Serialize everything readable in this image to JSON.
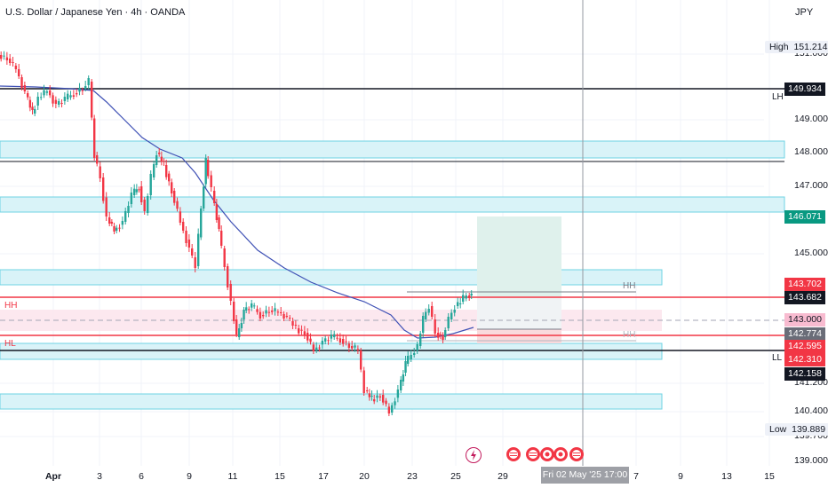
{
  "header": {
    "title": "U.S. Dollar / Japanese Yen · 4h · OANDA",
    "currency": "JPY"
  },
  "colors": {
    "bull": "#26a69a",
    "bear": "#f23645",
    "zone": "#d9f3f8",
    "zone_border": "#4dd0e1",
    "ma": "#3f51b5"
  },
  "price_axis": {
    "labels": [
      "151.000",
      "149.000",
      "148.000",
      "147.000",
      "145.000",
      "141.200",
      "140.400",
      "139.700",
      "139.000"
    ],
    "high": {
      "label": "High",
      "value": "151.214"
    },
    "low": {
      "label": "Low",
      "value": "139.889"
    }
  },
  "price_tags": [
    {
      "value": "149.934",
      "bg": "#131722",
      "fg": "#ffffff"
    },
    {
      "value": "146.071",
      "bg": "#089981",
      "fg": "#ffffff"
    },
    {
      "value": "143.702",
      "bg": "#f23645",
      "fg": "#ffffff"
    },
    {
      "value": "143.682",
      "bg": "#131722",
      "fg": "#ffffff"
    },
    {
      "value": "143.000",
      "bg": "#f8bbd0",
      "fg": "#131722"
    },
    {
      "value": "142.774",
      "bg": "#6a6d78",
      "fg": "#ffffff"
    },
    {
      "value": "142.595",
      "bg": "#f23645",
      "fg": "#ffffff"
    },
    {
      "value": "142.310",
      "bg": "#f23645",
      "fg": "#ffffff"
    },
    {
      "value": "142.158",
      "bg": "#131722",
      "fg": "#ffffff"
    }
  ],
  "side_labels": {
    "lh": "LH",
    "ll": "LL"
  },
  "chart_labels": {
    "hh_left": "HH",
    "hl_left": "HL",
    "hh_right": "HH",
    "hh_right_faded": "HH"
  },
  "time_axis": [
    "Apr",
    "3",
    "6",
    "9",
    "11",
    "15",
    "17",
    "20",
    "23",
    "25",
    "29",
    "7",
    "9",
    "13",
    "15"
  ],
  "crosshair_time": "Fri 02 May '25   17:00",
  "events": [
    "lightning-event",
    "us-flag-event",
    "us-flag-event",
    "jp-flag-event",
    "jp-flag-event",
    "us-flag-event"
  ]
}
